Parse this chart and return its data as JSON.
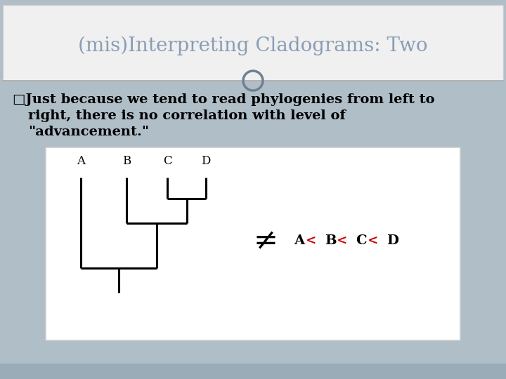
{
  "title": "(mis)Interpreting Cladograms: Two",
  "title_color": "#8a9db5",
  "title_fontsize": 20,
  "bg_color": "#b0bec8",
  "header_bg": "#f0f0f0",
  "bullet_text_line1": "□Just because we tend to read phylogenies from left to",
  "bullet_text_line2": "right, there is no correlation with level of",
  "bullet_text_line3": "\"advancement.\"",
  "bullet_fontsize": 14,
  "box_bg": "#ffffff",
  "labels": [
    "A",
    "B",
    "C",
    "D"
  ],
  "not_equal_symbol": "≠",
  "red_color": "#cc0000",
  "black_color": "#000000",
  "circle_color": "#708090",
  "bottom_strip_color": "#9aacb8"
}
